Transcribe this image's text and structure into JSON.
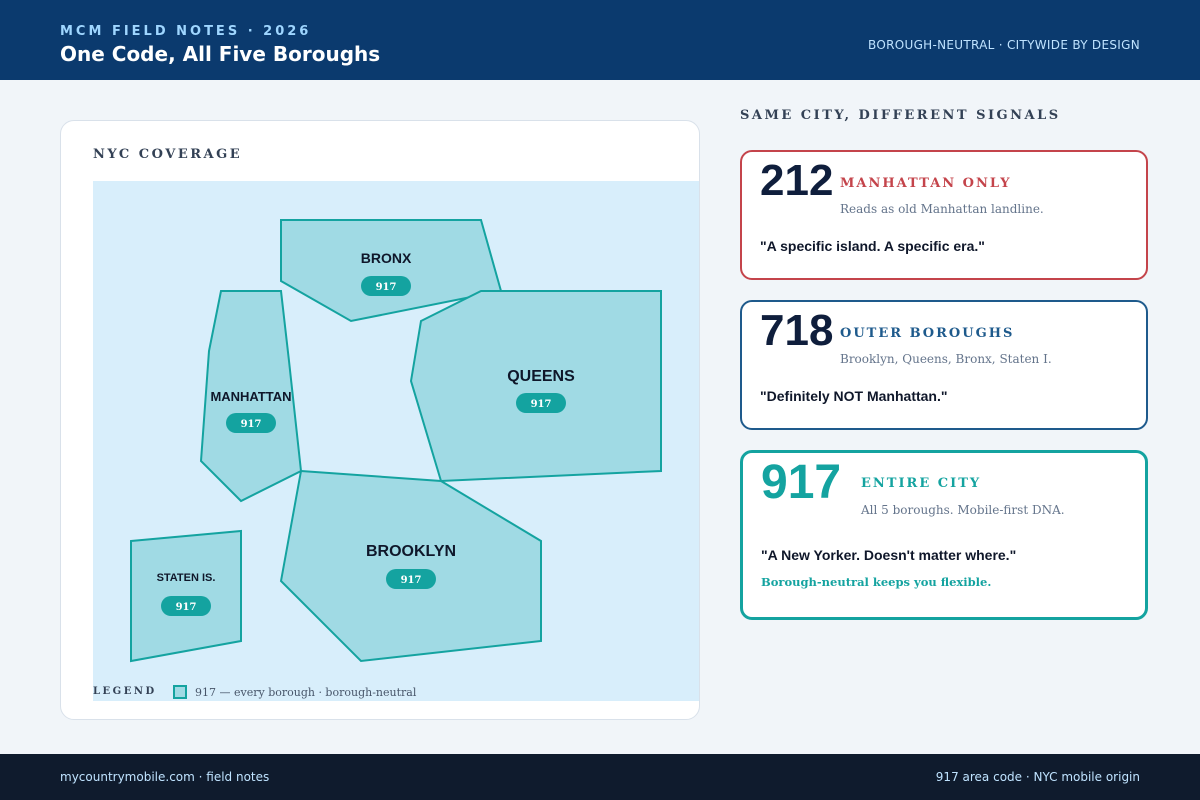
{
  "header": {
    "eyebrow": "MCM FIELD NOTES · 2026",
    "title": "One Code, All Five Boroughs",
    "tagline": "BOROUGH-NEUTRAL · CITYWIDE BY DESIGN"
  },
  "map": {
    "title": "NYC COVERAGE",
    "colors": {
      "water": "#d8eefb",
      "land": "#a0dae4",
      "border": "#14a3a0",
      "pill": "#14a3a0"
    },
    "boroughs": [
      {
        "name": "BRONX",
        "code": "917"
      },
      {
        "name": "QUEENS",
        "code": "917"
      },
      {
        "name": "MANHATTAN",
        "code": "917"
      },
      {
        "name": "BROOKLYN",
        "code": "917"
      },
      {
        "name": "STATEN IS.",
        "code": "917"
      }
    ],
    "legend": {
      "title": "LEGEND",
      "text": "917 — every borough · borough-neutral"
    }
  },
  "side": {
    "heading": "SAME CITY, DIFFERENT SIGNALS",
    "cards": [
      {
        "code": "212",
        "label": "MANHATTAN ONLY",
        "desc": "Reads as old Manhattan landline.",
        "quote": "\"A specific island. A specific era.\"",
        "accent": "#c4444b"
      },
      {
        "code": "718",
        "label": "OUTER BOROUGHS",
        "desc": "Brooklyn, Queens, Bronx, Staten I.",
        "quote": "\"Definitely NOT Manhattan.\"",
        "accent": "#1e5a8c"
      },
      {
        "code": "917",
        "label": "ENTIRE CITY",
        "desc": "All 5 boroughs. Mobile-first DNA.",
        "quote": "\"A New Yorker. Doesn't matter where.\"",
        "note": "Borough-neutral keeps you flexible.",
        "accent": "#14a3a0"
      }
    ]
  },
  "footer": {
    "left": "mycountrymobile.com · field notes",
    "right": "917 area code · NYC mobile origin"
  }
}
